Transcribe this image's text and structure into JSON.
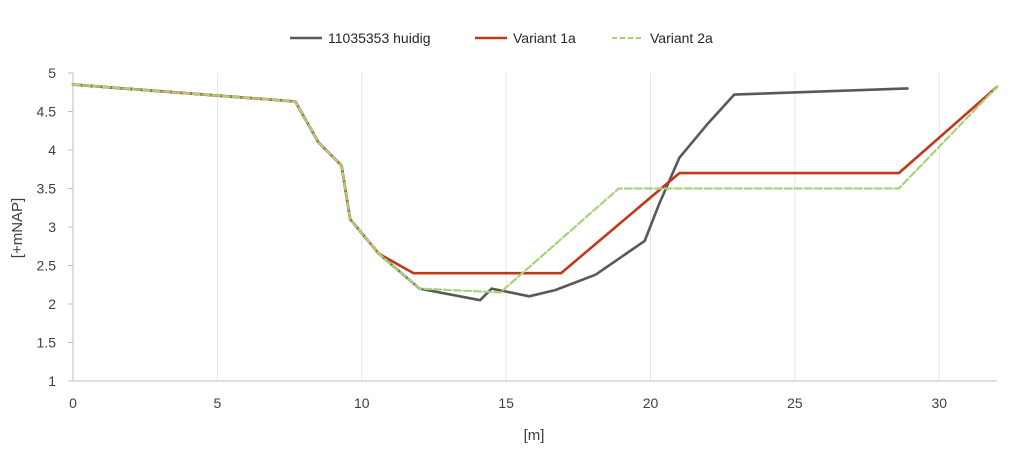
{
  "chart_data": {
    "type": "line",
    "title": "",
    "xlabel": "[m]",
    "ylabel": "[+mNAP]",
    "xlim": [
      0,
      32
    ],
    "ylim": [
      1,
      5
    ],
    "xticks": [
      0,
      5,
      10,
      15,
      20,
      25,
      30
    ],
    "yticks": [
      1,
      1.5,
      2,
      2.5,
      3,
      3.5,
      4,
      4.5,
      5
    ],
    "xtick_labels": [
      "0",
      "5",
      "10",
      "15",
      "20",
      "25",
      "30"
    ],
    "ytick_labels": [
      "1",
      "1.5",
      "2",
      "2.5",
      "3",
      "3.5",
      "4",
      "4.5",
      "5"
    ],
    "grid": "vertical",
    "legend_position": "top-center",
    "series": [
      {
        "name": "11035353 huidig",
        "color": "#595959",
        "dash": "solid",
        "x": [
          0,
          7.7,
          8.5,
          9.3,
          9.6,
          10.6,
          12,
          14.1,
          14.5,
          15.8,
          16.7,
          18.1,
          19.8,
          20.3,
          21,
          22,
          22.9,
          28.9
        ],
        "y": [
          4.85,
          4.63,
          4.1,
          3.8,
          3.1,
          2.65,
          2.2,
          2.05,
          2.2,
          2.1,
          2.18,
          2.38,
          2.82,
          3.3,
          3.9,
          4.35,
          4.72,
          4.8
        ]
      },
      {
        "name": "Variant 1a",
        "color": "#c0391b",
        "dash": "solid",
        "x": [
          0,
          7.7,
          8.5,
          9.3,
          9.6,
          10.6,
          11.8,
          16.9,
          21,
          28.6,
          32
        ],
        "y": [
          4.85,
          4.63,
          4.1,
          3.8,
          3.1,
          2.65,
          2.4,
          2.4,
          3.7,
          3.7,
          4.82
        ]
      },
      {
        "name": "Variant 2a",
        "color": "#a8d27b",
        "dash": "dashed",
        "x": [
          0,
          7.7,
          8.5,
          9.3,
          9.6,
          10.6,
          12,
          14.8,
          18.9,
          28.6,
          32
        ],
        "y": [
          4.85,
          4.63,
          4.1,
          3.8,
          3.1,
          2.65,
          2.2,
          2.15,
          3.5,
          3.5,
          4.82
        ]
      }
    ]
  }
}
